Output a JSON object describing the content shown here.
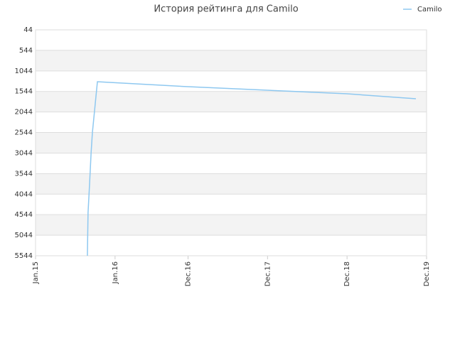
{
  "chart_data": {
    "type": "line",
    "title": "История рейтинга для Camilo",
    "x": [
      "2015-08-27",
      "2015-08-30",
      "2015-09-06",
      "2015-09-13",
      "2015-09-19",
      "2015-10-12",
      "2015-11-23",
      "2016-12-01",
      "2017-12-01",
      "2018-12-01",
      "2019-10-13"
    ],
    "series": [
      {
        "name": "Camilo",
        "color": "#8ec8f0",
        "values": [
          5544,
          4500,
          3800,
          3044,
          2544,
          1307,
          1320,
          1428,
          1514,
          1601,
          1722
        ]
      }
    ],
    "xlim": [
      "2015-01-01",
      "2019-12-01"
    ],
    "xticks": [
      {
        "value": "2015-01-01",
        "label": "Jan.15"
      },
      {
        "value": "2016-01-01",
        "label": "Jan.16"
      },
      {
        "value": "2016-12-01",
        "label": "Dec.16"
      },
      {
        "value": "2017-12-01",
        "label": "Dec.17"
      },
      {
        "value": "2018-12-01",
        "label": "Dec.18"
      },
      {
        "value": "2019-12-01",
        "label": "Dec.19"
      }
    ],
    "ylim": [
      5544,
      44
    ],
    "y_inverted": true,
    "yticks": [
      44,
      544,
      1044,
      1544,
      2044,
      2544,
      3044,
      3544,
      4044,
      4544,
      5044,
      5544
    ],
    "grid": true,
    "legend": "top-right"
  }
}
